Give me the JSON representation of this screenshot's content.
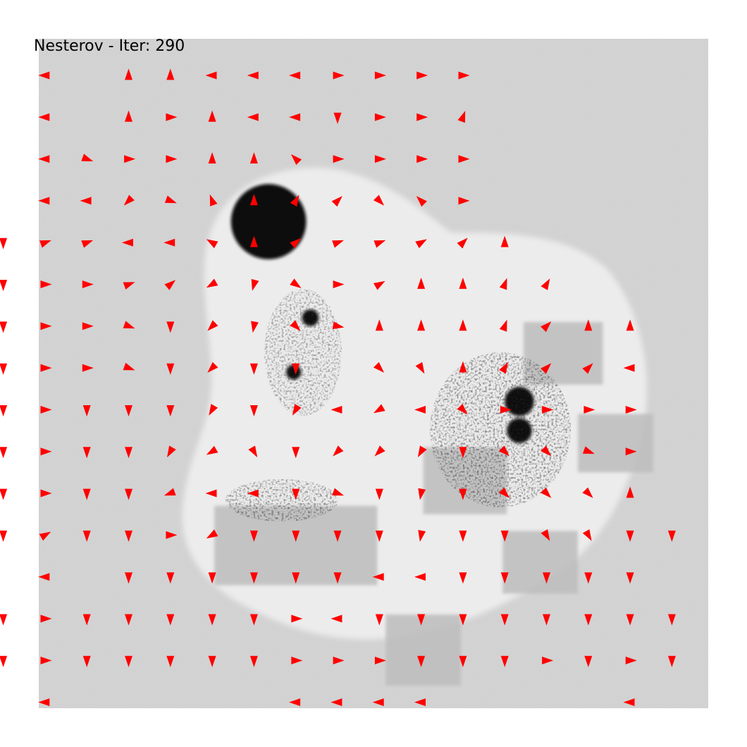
{
  "chart_data": {
    "type": "quiver",
    "title": "Nesterov - Iter: 290",
    "xlabel": "",
    "ylabel": "",
    "axes_visible": false,
    "grid": false,
    "colors": {
      "arrow": "#ff0000",
      "field_background": "#d8d8d8",
      "basin": "#ececec",
      "dark_blob": "#0d0d0d",
      "gray_panel": "#bdbdbd"
    },
    "grid_spec": {
      "cols": 16,
      "rows": 17,
      "x_range": [
        0,
        15
      ],
      "y_range": [
        0,
        16
      ]
    },
    "arrows": [
      {
        "x": 1,
        "y": 0,
        "angle": 180
      },
      {
        "x": 3,
        "y": 0,
        "angle": -90
      },
      {
        "x": 4,
        "y": 0,
        "angle": -90
      },
      {
        "x": 5,
        "y": 0,
        "angle": 180
      },
      {
        "x": 6,
        "y": 0,
        "angle": 180
      },
      {
        "x": 7,
        "y": 0,
        "angle": 180
      },
      {
        "x": 8,
        "y": 0,
        "angle": 0
      },
      {
        "x": 9,
        "y": 0,
        "angle": 0
      },
      {
        "x": 10,
        "y": 0,
        "angle": 0
      },
      {
        "x": 11,
        "y": 0,
        "angle": 0
      },
      {
        "x": 1,
        "y": 1,
        "angle": 180
      },
      {
        "x": 3,
        "y": 1,
        "angle": -90
      },
      {
        "x": 4,
        "y": 1,
        "angle": 0
      },
      {
        "x": 5,
        "y": 1,
        "angle": -90
      },
      {
        "x": 6,
        "y": 1,
        "angle": 180
      },
      {
        "x": 7,
        "y": 1,
        "angle": 180
      },
      {
        "x": 8,
        "y": 1,
        "angle": 90
      },
      {
        "x": 9,
        "y": 1,
        "angle": 0
      },
      {
        "x": 10,
        "y": 1,
        "angle": 0
      },
      {
        "x": 11,
        "y": 1,
        "angle": -70
      },
      {
        "x": 1,
        "y": 2,
        "angle": 180
      },
      {
        "x": 2,
        "y": 2,
        "angle": 20
      },
      {
        "x": 3,
        "y": 2,
        "angle": 0
      },
      {
        "x": 4,
        "y": 2,
        "angle": 0
      },
      {
        "x": 5,
        "y": 2,
        "angle": -90
      },
      {
        "x": 6,
        "y": 2,
        "angle": -90
      },
      {
        "x": 7,
        "y": 2,
        "angle": -135
      },
      {
        "x": 8,
        "y": 2,
        "angle": 0
      },
      {
        "x": 9,
        "y": 2,
        "angle": 0
      },
      {
        "x": 10,
        "y": 2,
        "angle": 0
      },
      {
        "x": 11,
        "y": 2,
        "angle": 0
      },
      {
        "x": 1,
        "y": 3,
        "angle": 180
      },
      {
        "x": 2,
        "y": 3,
        "angle": 180
      },
      {
        "x": 3,
        "y": 3,
        "angle": 135
      },
      {
        "x": 4,
        "y": 3,
        "angle": 20
      },
      {
        "x": 5,
        "y": 3,
        "angle": -110
      },
      {
        "x": 6,
        "y": 3,
        "angle": -90
      },
      {
        "x": 7,
        "y": 3,
        "angle": -60
      },
      {
        "x": 8,
        "y": 3,
        "angle": -45
      },
      {
        "x": 9,
        "y": 3,
        "angle": 45
      },
      {
        "x": 10,
        "y": 3,
        "angle": -135
      },
      {
        "x": 11,
        "y": 3,
        "angle": 0
      },
      {
        "x": 0,
        "y": 4,
        "angle": 90
      },
      {
        "x": 1,
        "y": 4,
        "angle": -20
      },
      {
        "x": 2,
        "y": 4,
        "angle": -20
      },
      {
        "x": 3,
        "y": 4,
        "angle": 180
      },
      {
        "x": 4,
        "y": 4,
        "angle": 180
      },
      {
        "x": 5,
        "y": 4,
        "angle": -150
      },
      {
        "x": 6,
        "y": 4,
        "angle": -90
      },
      {
        "x": 7,
        "y": 4,
        "angle": -40
      },
      {
        "x": 8,
        "y": 4,
        "angle": -20
      },
      {
        "x": 9,
        "y": 4,
        "angle": -20
      },
      {
        "x": 10,
        "y": 4,
        "angle": -30
      },
      {
        "x": 11,
        "y": 4,
        "angle": -45
      },
      {
        "x": 12,
        "y": 4,
        "angle": -90
      },
      {
        "x": 0,
        "y": 5,
        "angle": 90
      },
      {
        "x": 1,
        "y": 5,
        "angle": 0
      },
      {
        "x": 2,
        "y": 5,
        "angle": 0
      },
      {
        "x": 3,
        "y": 5,
        "angle": -20
      },
      {
        "x": 4,
        "y": 5,
        "angle": -40
      },
      {
        "x": 5,
        "y": 5,
        "angle": 150
      },
      {
        "x": 6,
        "y": 5,
        "angle": 105
      },
      {
        "x": 7,
        "y": 5,
        "angle": 35
      },
      {
        "x": 8,
        "y": 5,
        "angle": 0
      },
      {
        "x": 9,
        "y": 5,
        "angle": -30
      },
      {
        "x": 10,
        "y": 5,
        "angle": -90
      },
      {
        "x": 11,
        "y": 5,
        "angle": -90
      },
      {
        "x": 12,
        "y": 5,
        "angle": -70
      },
      {
        "x": 13,
        "y": 5,
        "angle": -60
      },
      {
        "x": 0,
        "y": 6,
        "angle": 90
      },
      {
        "x": 1,
        "y": 6,
        "angle": 0
      },
      {
        "x": 2,
        "y": 6,
        "angle": 0
      },
      {
        "x": 3,
        "y": 6,
        "angle": 20
      },
      {
        "x": 4,
        "y": 6,
        "angle": 90
      },
      {
        "x": 5,
        "y": 6,
        "angle": 135
      },
      {
        "x": 6,
        "y": 6,
        "angle": 100
      },
      {
        "x": 7,
        "y": 6,
        "angle": 45
      },
      {
        "x": 8,
        "y": 6,
        "angle": 10
      },
      {
        "x": 9,
        "y": 6,
        "angle": -90
      },
      {
        "x": 10,
        "y": 6,
        "angle": -90
      },
      {
        "x": 11,
        "y": 6,
        "angle": -90
      },
      {
        "x": 12,
        "y": 6,
        "angle": -70
      },
      {
        "x": 13,
        "y": 6,
        "angle": -45
      },
      {
        "x": 14,
        "y": 6,
        "angle": -90
      },
      {
        "x": 15,
        "y": 6,
        "angle": -90
      },
      {
        "x": 0,
        "y": 7,
        "angle": 90
      },
      {
        "x": 1,
        "y": 7,
        "angle": 0
      },
      {
        "x": 2,
        "y": 7,
        "angle": 0
      },
      {
        "x": 3,
        "y": 7,
        "angle": 20
      },
      {
        "x": 4,
        "y": 7,
        "angle": 90
      },
      {
        "x": 5,
        "y": 7,
        "angle": 135
      },
      {
        "x": 6,
        "y": 7,
        "angle": 90
      },
      {
        "x": 7,
        "y": 7,
        "angle": 90
      },
      {
        "x": 9,
        "y": 7,
        "angle": 45
      },
      {
        "x": 10,
        "y": 7,
        "angle": 60
      },
      {
        "x": 11,
        "y": 7,
        "angle": -90
      },
      {
        "x": 12,
        "y": 7,
        "angle": -60
      },
      {
        "x": 13,
        "y": 7,
        "angle": -45
      },
      {
        "x": 14,
        "y": 7,
        "angle": -45
      },
      {
        "x": 15,
        "y": 7,
        "angle": 180
      },
      {
        "x": 0,
        "y": 8,
        "angle": 90
      },
      {
        "x": 1,
        "y": 8,
        "angle": 0
      },
      {
        "x": 2,
        "y": 8,
        "angle": 90
      },
      {
        "x": 3,
        "y": 8,
        "angle": 90
      },
      {
        "x": 4,
        "y": 8,
        "angle": 90
      },
      {
        "x": 5,
        "y": 8,
        "angle": 120
      },
      {
        "x": 6,
        "y": 8,
        "angle": 90
      },
      {
        "x": 7,
        "y": 8,
        "angle": 120
      },
      {
        "x": 8,
        "y": 8,
        "angle": 180
      },
      {
        "x": 9,
        "y": 8,
        "angle": 150
      },
      {
        "x": 10,
        "y": 8,
        "angle": 180
      },
      {
        "x": 11,
        "y": 8,
        "angle": 45
      },
      {
        "x": 12,
        "y": 8,
        "angle": 0
      },
      {
        "x": 13,
        "y": 8,
        "angle": 0
      },
      {
        "x": 14,
        "y": 8,
        "angle": 0
      },
      {
        "x": 15,
        "y": 8,
        "angle": 0
      },
      {
        "x": 0,
        "y": 9,
        "angle": 90
      },
      {
        "x": 1,
        "y": 9,
        "angle": 0
      },
      {
        "x": 2,
        "y": 9,
        "angle": 90
      },
      {
        "x": 3,
        "y": 9,
        "angle": 90
      },
      {
        "x": 4,
        "y": 9,
        "angle": 120
      },
      {
        "x": 5,
        "y": 9,
        "angle": 150
      },
      {
        "x": 6,
        "y": 9,
        "angle": 60
      },
      {
        "x": 7,
        "y": 9,
        "angle": 90
      },
      {
        "x": 8,
        "y": 9,
        "angle": 135
      },
      {
        "x": 9,
        "y": 9,
        "angle": 135
      },
      {
        "x": 10,
        "y": 9,
        "angle": 120
      },
      {
        "x": 11,
        "y": 9,
        "angle": 90
      },
      {
        "x": 12,
        "y": 9,
        "angle": 45
      },
      {
        "x": 13,
        "y": 9,
        "angle": 45
      },
      {
        "x": 14,
        "y": 9,
        "angle": 20
      },
      {
        "x": 15,
        "y": 9,
        "angle": 0
      },
      {
        "x": 0,
        "y": 10,
        "angle": 90
      },
      {
        "x": 1,
        "y": 10,
        "angle": 0
      },
      {
        "x": 2,
        "y": 10,
        "angle": 90
      },
      {
        "x": 3,
        "y": 10,
        "angle": 90
      },
      {
        "x": 4,
        "y": 10,
        "angle": 160
      },
      {
        "x": 5,
        "y": 10,
        "angle": 180
      },
      {
        "x": 6,
        "y": 10,
        "angle": 180
      },
      {
        "x": 7,
        "y": 10,
        "angle": 90
      },
      {
        "x": 8,
        "y": 10,
        "angle": 20
      },
      {
        "x": 9,
        "y": 10,
        "angle": 90
      },
      {
        "x": 10,
        "y": 10,
        "angle": 100
      },
      {
        "x": 11,
        "y": 10,
        "angle": 90
      },
      {
        "x": 12,
        "y": 10,
        "angle": 45
      },
      {
        "x": 13,
        "y": 10,
        "angle": 45
      },
      {
        "x": 14,
        "y": 10,
        "angle": 45
      },
      {
        "x": 15,
        "y": 10,
        "angle": -90
      },
      {
        "x": 0,
        "y": 11,
        "angle": 90
      },
      {
        "x": 1,
        "y": 11,
        "angle": -30
      },
      {
        "x": 2,
        "y": 11,
        "angle": 90
      },
      {
        "x": 3,
        "y": 11,
        "angle": 90
      },
      {
        "x": 4,
        "y": 11,
        "angle": 0
      },
      {
        "x": 5,
        "y": 11,
        "angle": 150
      },
      {
        "x": 6,
        "y": 11,
        "angle": 90
      },
      {
        "x": 7,
        "y": 11,
        "angle": 90
      },
      {
        "x": 8,
        "y": 11,
        "angle": 90
      },
      {
        "x": 9,
        "y": 11,
        "angle": 90
      },
      {
        "x": 10,
        "y": 11,
        "angle": 100
      },
      {
        "x": 11,
        "y": 11,
        "angle": 90
      },
      {
        "x": 12,
        "y": 11,
        "angle": 90
      },
      {
        "x": 13,
        "y": 11,
        "angle": 60
      },
      {
        "x": 14,
        "y": 11,
        "angle": 60
      },
      {
        "x": 15,
        "y": 11,
        "angle": 90
      },
      {
        "x": 16,
        "y": 11,
        "angle": 90
      },
      {
        "x": 1,
        "y": 12,
        "angle": 180
      },
      {
        "x": 3,
        "y": 12,
        "angle": 90
      },
      {
        "x": 4,
        "y": 12,
        "angle": 90
      },
      {
        "x": 5,
        "y": 12,
        "angle": 90
      },
      {
        "x": 6,
        "y": 12,
        "angle": 90
      },
      {
        "x": 7,
        "y": 12,
        "angle": 90
      },
      {
        "x": 8,
        "y": 12,
        "angle": 90
      },
      {
        "x": 9,
        "y": 12,
        "angle": 180
      },
      {
        "x": 10,
        "y": 12,
        "angle": 180
      },
      {
        "x": 11,
        "y": 12,
        "angle": 90
      },
      {
        "x": 12,
        "y": 12,
        "angle": 90
      },
      {
        "x": 13,
        "y": 12,
        "angle": 90
      },
      {
        "x": 14,
        "y": 12,
        "angle": 90
      },
      {
        "x": 15,
        "y": 12,
        "angle": 90
      },
      {
        "x": 0,
        "y": 13,
        "angle": 90
      },
      {
        "x": 1,
        "y": 13,
        "angle": 0
      },
      {
        "x": 2,
        "y": 13,
        "angle": 90
      },
      {
        "x": 3,
        "y": 13,
        "angle": 90
      },
      {
        "x": 4,
        "y": 13,
        "angle": 90
      },
      {
        "x": 5,
        "y": 13,
        "angle": 90
      },
      {
        "x": 6,
        "y": 13,
        "angle": 90
      },
      {
        "x": 7,
        "y": 13,
        "angle": 0
      },
      {
        "x": 8,
        "y": 13,
        "angle": 180
      },
      {
        "x": 9,
        "y": 13,
        "angle": 90
      },
      {
        "x": 10,
        "y": 13,
        "angle": 90
      },
      {
        "x": 11,
        "y": 13,
        "angle": 90
      },
      {
        "x": 12,
        "y": 13,
        "angle": 90
      },
      {
        "x": 13,
        "y": 13,
        "angle": 90
      },
      {
        "x": 14,
        "y": 13,
        "angle": 90
      },
      {
        "x": 15,
        "y": 13,
        "angle": 90
      },
      {
        "x": 16,
        "y": 13,
        "angle": 90
      },
      {
        "x": 0,
        "y": 14,
        "angle": 90
      },
      {
        "x": 1,
        "y": 14,
        "angle": 0
      },
      {
        "x": 2,
        "y": 14,
        "angle": 90
      },
      {
        "x": 3,
        "y": 14,
        "angle": 90
      },
      {
        "x": 4,
        "y": 14,
        "angle": 90
      },
      {
        "x": 5,
        "y": 14,
        "angle": 90
      },
      {
        "x": 6,
        "y": 14,
        "angle": 90
      },
      {
        "x": 7,
        "y": 14,
        "angle": 0
      },
      {
        "x": 8,
        "y": 14,
        "angle": 0
      },
      {
        "x": 9,
        "y": 14,
        "angle": 0
      },
      {
        "x": 10,
        "y": 14,
        "angle": 90
      },
      {
        "x": 11,
        "y": 14,
        "angle": 90
      },
      {
        "x": 12,
        "y": 14,
        "angle": 90
      },
      {
        "x": 13,
        "y": 14,
        "angle": 0
      },
      {
        "x": 14,
        "y": 14,
        "angle": 90
      },
      {
        "x": 15,
        "y": 14,
        "angle": 0
      },
      {
        "x": 16,
        "y": 14,
        "angle": 90
      },
      {
        "x": 1,
        "y": 15,
        "angle": 180
      },
      {
        "x": 7,
        "y": 15,
        "angle": 180
      },
      {
        "x": 8,
        "y": 15,
        "angle": 180
      },
      {
        "x": 9,
        "y": 15,
        "angle": 180
      },
      {
        "x": 10,
        "y": 15,
        "angle": 180
      },
      {
        "x": 15,
        "y": 15,
        "angle": 180
      }
    ],
    "scene": {
      "dark_blobs": [
        {
          "x": 6,
          "y": 4,
          "r": 0.9
        },
        {
          "x": 12,
          "y": 8.3,
          "r": 0.35
        },
        {
          "x": 12,
          "y": 9,
          "r": 0.3
        },
        {
          "x": 6.6,
          "y": 7.6,
          "r": 0.18
        },
        {
          "x": 7,
          "y": 6.3,
          "r": 0.2
        }
      ],
      "gray_panels": [
        {
          "x0": 11.6,
          "y0": 5.9,
          "x1": 13.5,
          "y1": 7.4
        },
        {
          "x0": 12.9,
          "y0": 8.1,
          "x1": 14.7,
          "y1": 9.5
        },
        {
          "x0": 9.2,
          "y0": 8.9,
          "x1": 11.2,
          "y1": 10.5
        },
        {
          "x0": 11.1,
          "y0": 10.9,
          "x1": 12.9,
          "y1": 12.4
        },
        {
          "x0": 4.2,
          "y0": 10.3,
          "x1": 8.1,
          "y1": 12.2
        },
        {
          "x0": 8.3,
          "y0": 12.9,
          "x1": 10.1,
          "y1": 14.6
        }
      ]
    }
  }
}
